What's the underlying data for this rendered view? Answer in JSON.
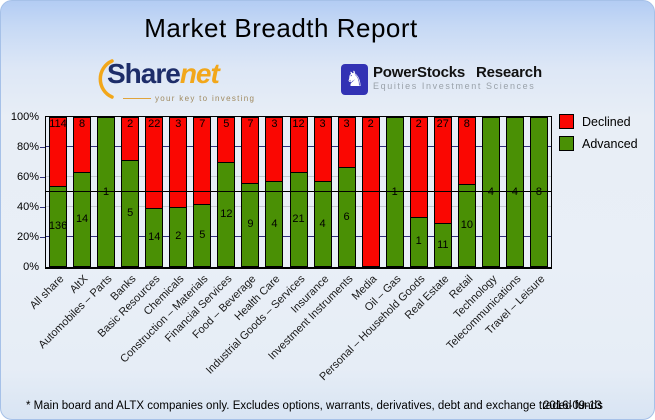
{
  "report": {
    "title": "Market Breadth Report",
    "footnote": "* Main board and ALTX companies only. Excludes options, warrants, derivatives, debt and exchange traded funds",
    "date": "2016-09-13"
  },
  "branding": {
    "sharenet": {
      "word_primary": "Share",
      "word_secondary": "net",
      "tagline": "your key to investing",
      "swoosh_icon": "orange-arc",
      "primary_color": "#1d2d69",
      "accent_color": "#f2a71a"
    },
    "powerstocks": {
      "name": "PowerStocks Research",
      "tagline": "Equities Investment Sciences",
      "knight_icon": "chess-knight",
      "badge_color": "#3232b4"
    }
  },
  "legend": {
    "items": [
      {
        "label": "Declined",
        "color": "#fa0702"
      },
      {
        "label": "Advanced",
        "color": "#4a9005"
      }
    ]
  },
  "chart_data": {
    "type": "bar",
    "stacked": true,
    "normalized_to_percent": true,
    "title": "Market Breadth Report",
    "categories": [
      "All share",
      "AltX",
      "Automobiles – Parts",
      "Banks",
      "Basic Resources",
      "Chemicals",
      "Construction – Materials",
      "Financial Services",
      "Food – Beverage",
      "Health Care",
      "Industrial Goods – Services",
      "Insurance",
      "Investment Instruments",
      "Media",
      "Oil – Gas",
      "Personal – Household Goods",
      "Real Estate",
      "Retail",
      "Technology",
      "Telecommunications",
      "Travel – Leisure"
    ],
    "series": [
      {
        "name": "Declined",
        "color": "#fa0702",
        "position": "top",
        "values": [
          114,
          8,
          0,
          2,
          22,
          3,
          7,
          5,
          7,
          3,
          12,
          3,
          3,
          2,
          0,
          2,
          27,
          8,
          0,
          0,
          0
        ]
      },
      {
        "name": "Advanced",
        "color": "#4a9005",
        "position": "bottom",
        "values": [
          136,
          14,
          1,
          5,
          14,
          2,
          5,
          12,
          9,
          4,
          21,
          4,
          6,
          0,
          1,
          1,
          11,
          10,
          4,
          4,
          8
        ]
      }
    ],
    "y_ticks": [
      "0%",
      "20%",
      "40%",
      "60%",
      "80%",
      "100%"
    ],
    "ylim": [
      0,
      100
    ],
    "reference_line_pct": 50,
    "gridlines": {
      "navy": [
        20,
        80
      ],
      "gray": [
        40,
        60
      ]
    },
    "gridline_colors": {
      "navy": "#32327e",
      "gray": "#c4cad2"
    },
    "legend_position": "right"
  }
}
